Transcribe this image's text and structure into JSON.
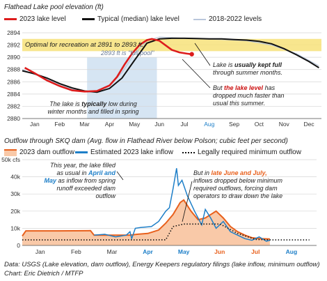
{
  "chart_data": [
    {
      "type": "line",
      "title": "Flathead Lake pool elevation (ft)",
      "legend": [
        "2023 lake level",
        "Typical (median) lake level",
        "2018-2022 levels"
      ],
      "legend_placement": "top",
      "x_ticks": [
        "Jan",
        "Feb",
        "Mar",
        "Apr",
        "May",
        "Jun",
        "Jul",
        "Aug",
        "Sep",
        "Oct",
        "Nov",
        "Dec"
      ],
      "y_ticks": [
        "2880",
        "2882",
        "2884",
        "2886",
        "2888",
        "2890",
        "2892",
        "2894"
      ],
      "ylim": [
        2880,
        2894
      ],
      "grid": "horizontal",
      "band": {
        "label": "Optimal for recreation at 2891 to 2893 ft.",
        "from": 2891,
        "to": 2893
      },
      "full_pool_label": "2893 ft is \"full pool\"",
      "colors": {
        "lake_2023": "#dd1c1c",
        "median": "#111111",
        "prior_years": "#b9c7db",
        "band": "#f7e27a",
        "shade": "#cfe0f1"
      },
      "series": [
        {
          "name": "2023 lake level",
          "x": [
            0.1,
            0.5,
            1.0,
            1.5,
            2.0,
            2.5,
            3.0,
            3.5,
            3.8,
            4.1,
            4.4,
            4.7,
            5.0,
            5.2,
            5.5,
            5.8,
            6.0,
            6.3,
            6.6,
            6.8
          ],
          "y": [
            2888.3,
            2887.4,
            2886.2,
            2885.3,
            2884.6,
            2884.4,
            2884.5,
            2885.4,
            2886.8,
            2888.8,
            2890.6,
            2892.0,
            2892.8,
            2893.0,
            2892.7,
            2891.8,
            2891.2,
            2890.8,
            2890.6,
            2890.5
          ]
        },
        {
          "name": "Typical (median) lake level",
          "x": [
            0.0,
            0.5,
            1.0,
            1.5,
            2.0,
            2.5,
            3.0,
            3.5,
            4.0,
            4.5,
            5.0,
            5.5,
            6.0,
            6.5,
            7.0,
            7.5,
            8.0,
            8.5,
            9.0,
            9.5,
            10.0,
            10.5,
            11.0,
            11.5,
            11.9
          ],
          "y": [
            2887.8,
            2887.3,
            2886.6,
            2885.7,
            2885.0,
            2884.5,
            2884.3,
            2884.9,
            2886.6,
            2889.5,
            2892.3,
            2893.0,
            2893.1,
            2893.1,
            2893.05,
            2893.0,
            2893.0,
            2892.9,
            2892.8,
            2892.6,
            2892.2,
            2891.4,
            2890.4,
            2889.3,
            2888.3
          ]
        },
        {
          "name": "2018-2022 levels",
          "x": [
            0.0,
            1.0,
            2.0,
            2.6,
            3.0,
            3.5,
            4.0,
            4.5,
            5.0,
            5.5,
            6.0,
            7.0,
            8.0,
            9.0,
            10.0,
            11.0,
            11.9
          ],
          "y": [
            2888.0,
            2886.4,
            2884.8,
            2884.3,
            2884.5,
            2885.4,
            2887.5,
            2890.6,
            2892.7,
            2893.3,
            2893.2,
            2893.0,
            2892.9,
            2892.7,
            2892.0,
            2890.6,
            2888.6
          ]
        }
      ],
      "annotations": [
        {
          "id": "kept_full",
          "text": "Lake is usually kept full through summer months."
        },
        {
          "id": "dropped",
          "text": "But the lake level has dropped much faster than usual this summer."
        },
        {
          "id": "low_winter",
          "text": "The lake is typically low during winter months and filled in spring"
        }
      ]
    },
    {
      "type": "area",
      "title": "Outflow through SKQ dam (Avg. flow in Flathead River below Polson; cubic feet per second)",
      "legend": [
        "2023 dam outflow",
        "Estimated 2023 lake inflow",
        "Legally required minimum outflow"
      ],
      "legend_placement": "top",
      "x_ticks": [
        "Jan",
        "Feb",
        "Mar",
        "Apr",
        "May",
        "Jun",
        "Jul",
        "Aug"
      ],
      "y_ticks": [
        "0",
        "10k",
        "20k",
        "30k",
        "40k",
        "50k cfs"
      ],
      "ylim": [
        0,
        50000
      ],
      "grid": "horizontal",
      "colors": {
        "outflow": "#e8601c",
        "outflow_fill": "#f9c9a8",
        "inflow": "#1e7fc8",
        "minimum": "#111111"
      },
      "series": [
        {
          "name": "2023 dam outflow",
          "x": [
            0.0,
            0.1,
            1.0,
            1.9,
            2.0,
            2.6,
            3.0,
            3.2,
            3.5,
            3.8,
            4.0,
            4.2,
            4.4,
            4.5,
            4.7,
            4.9,
            5.1,
            5.4,
            5.6,
            5.8,
            6.0,
            6.2,
            6.4,
            6.6,
            6.9
          ],
          "y": [
            5500,
            8500,
            8500,
            8600,
            6000,
            6000,
            6000,
            6500,
            7000,
            9000,
            13000,
            18000,
            25000,
            26500,
            20000,
            15000,
            16000,
            20000,
            16000,
            11000,
            8000,
            6000,
            4500,
            4000,
            3800
          ]
        },
        {
          "name": "Estimated 2023 lake inflow",
          "x": [
            2.0,
            2.3,
            2.6,
            2.9,
            3.0,
            3.05,
            3.15,
            3.3,
            3.6,
            3.8,
            4.0,
            4.1,
            4.2,
            4.3,
            4.35,
            4.45,
            4.6,
            4.8,
            5.0,
            5.1,
            5.25,
            5.4,
            5.6,
            5.8,
            6.0,
            6.2,
            6.4,
            6.6,
            6.8,
            6.9
          ],
          "y": [
            6000,
            6500,
            5000,
            6000,
            8000,
            4000,
            10000,
            10500,
            11000,
            14000,
            20000,
            22000,
            33000,
            45000,
            35000,
            38000,
            29000,
            20000,
            12000,
            21000,
            16000,
            10000,
            14000,
            8000,
            6000,
            4000,
            3000,
            5000,
            2500,
            3000
          ]
        },
        {
          "name": "Legally required minimum outflow",
          "x": [
            0.0,
            3.0,
            3.5,
            4.0,
            4.2,
            4.5,
            5.0,
            5.5,
            5.6,
            6.0,
            6.5,
            7.0,
            8.0
          ],
          "y": [
            3200,
            3200,
            3200,
            3300,
            11000,
            12500,
            12500,
            12500,
            11500,
            7000,
            3500,
            3200,
            3200
          ]
        }
      ],
      "annotations": [
        {
          "id": "filled",
          "text": "This year, the lake filled as usual in April and May as inflow from spring runoff exceeded dam outflow"
        },
        {
          "id": "dropped_below",
          "text": "But in late June and July, inflows dropped below minimum required outflows, forcing dam operators to draw down the lake"
        }
      ]
    }
  ],
  "source": "Data: USGS (Lake elevation, dam outflow), Energy Keepers regulatory filings (lake inflow, minimum outflow)",
  "credit": "Chart: Eric Dietrich / MTFP",
  "text": {
    "band_label": "Optimal for recreation at 2891 to 2893 ft.",
    "full_pool": "2893 ft is \"full pool\"",
    "kept_full_1": "Lake is ",
    "kept_full_bold": "usually kept full",
    "kept_full_2": " through summer months.",
    "dropped_1": "But ",
    "dropped_bold": "the lake level",
    "dropped_2": " has dropped much faster than usual this summer.",
    "low_1": "The lake is ",
    "low_bold": "typically",
    "low_2": " low during winter months and filled in spring",
    "filled_1": "This year, the lake filled as usual in ",
    "filled_apr": "April and May",
    "filled_2": " as inflow from spring runoff exceeded dam outflow",
    "drop_1": "But in ",
    "drop_bold": "late June and July,",
    "drop_2": " inflows dropped below minimum required outflows, forcing dam operators to draw down the lake"
  }
}
